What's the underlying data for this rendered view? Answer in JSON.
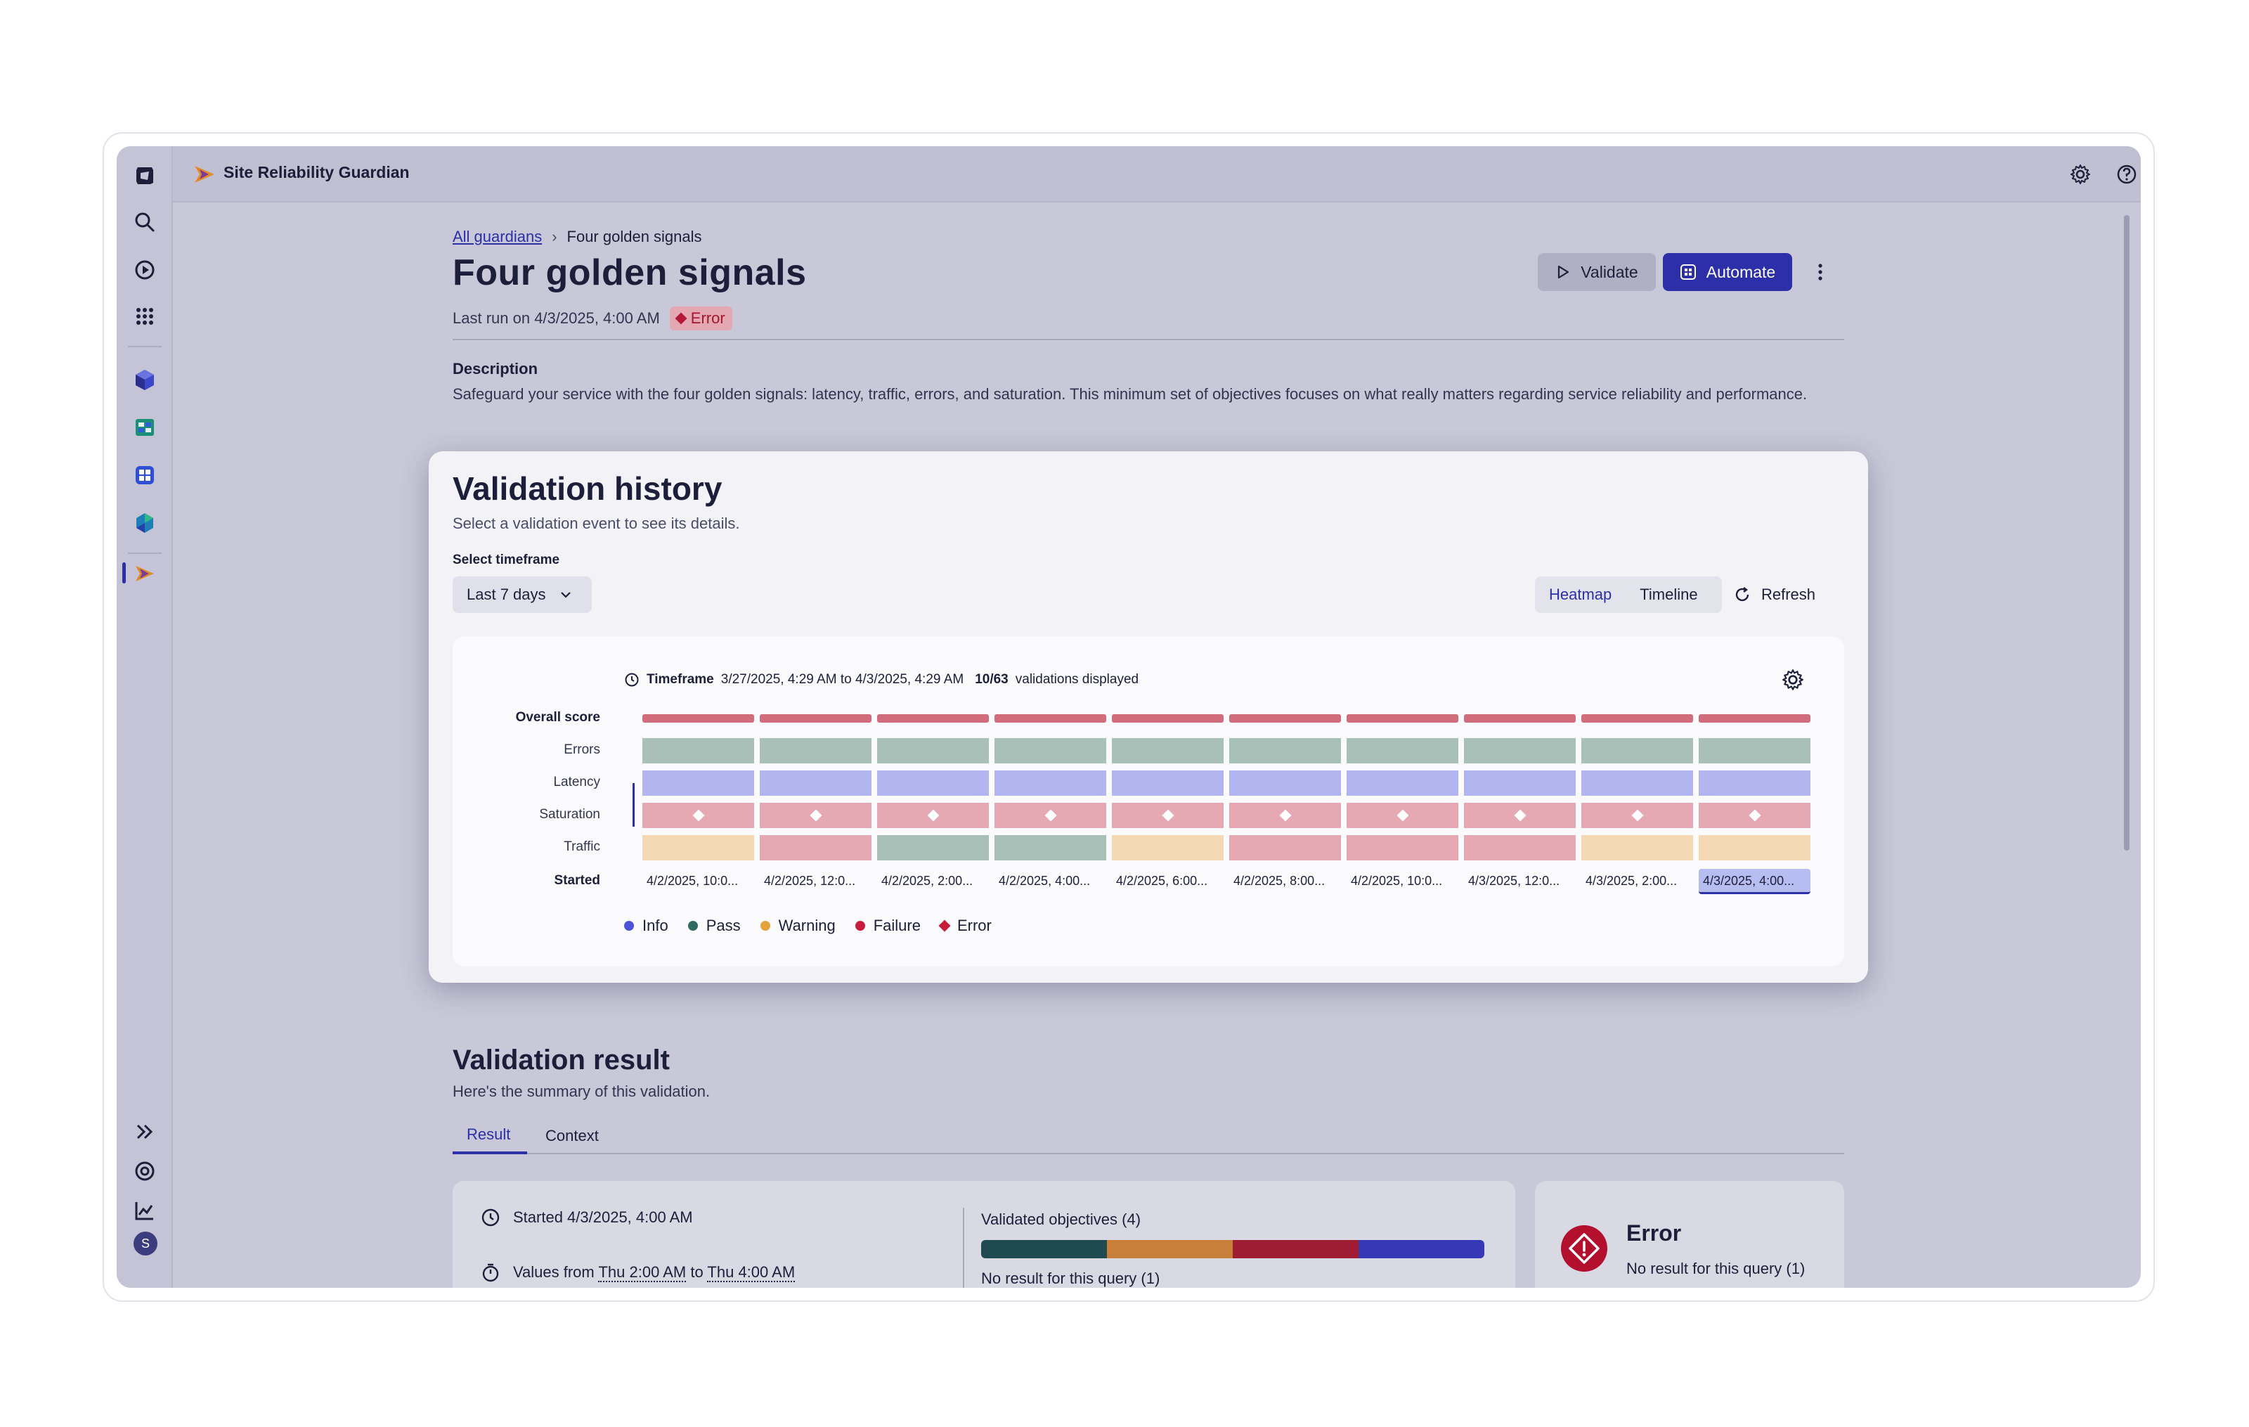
{
  "app": {
    "title": "Site Reliability Guardian"
  },
  "breadcrumb": {
    "root": "All guardians",
    "separator": "›",
    "current": "Four golden signals"
  },
  "header": {
    "title": "Four golden signals",
    "last_run": "Last run on 4/3/2025, 4:00 AM",
    "status": "Error",
    "validate_label": "Validate",
    "automate_label": "Automate"
  },
  "description": {
    "label": "Description",
    "text": "Safeguard your service with the four golden signals: latency, traffic, errors, and saturation. This minimum set of objectives focuses on what really matters regarding service reliability and performance."
  },
  "validation_history": {
    "title": "Validation history",
    "subtitle": "Select a validation event to see its details.",
    "timeframe_label": "Select timeframe",
    "timeframe_value": "Last 7 days",
    "view_heatmap": "Heatmap",
    "view_timeline": "Timeline",
    "refresh_label": "Refresh",
    "tf_label": "Timeframe",
    "tf_range": "3/27/2025, 4:29 AM to 4/3/2025, 4:29 AM",
    "tf_count": "10/63",
    "tf_count_suffix": "validations displayed",
    "heatmap": {
      "rows": [
        "Overall score",
        "Errors",
        "Latency",
        "Saturation",
        "Traffic"
      ],
      "started_label": "Started",
      "started": [
        "4/2/2025, 10:0...",
        "4/2/2025, 12:0...",
        "4/2/2025, 2:00...",
        "4/2/2025, 4:00...",
        "4/2/2025, 6:00...",
        "4/2/2025, 8:00...",
        "4/2/2025, 10:0...",
        "4/3/2025, 12:0...",
        "4/3/2025, 2:00...",
        "4/3/2025, 4:00..."
      ],
      "selected_index": 9,
      "cells": [
        [
          "error",
          "error",
          "error",
          "error",
          "error",
          "error",
          "error",
          "error",
          "error",
          "error"
        ],
        [
          "pass",
          "pass",
          "pass",
          "pass",
          "pass",
          "pass",
          "pass",
          "pass",
          "pass",
          "pass"
        ],
        [
          "info",
          "info",
          "info",
          "info",
          "info",
          "info",
          "info",
          "info",
          "info",
          "info"
        ],
        [
          "failure-marked",
          "failure-marked",
          "failure-marked",
          "failure-marked",
          "failure-marked",
          "failure-marked",
          "failure-marked",
          "failure-marked",
          "failure-marked",
          "failure-marked"
        ],
        [
          "warning",
          "failure",
          "pass",
          "pass",
          "warning",
          "failure",
          "failure",
          "failure",
          "warning",
          "warning"
        ]
      ]
    },
    "legend": [
      {
        "label": "Info",
        "color": "#4d53d6",
        "shape": "dot"
      },
      {
        "label": "Pass",
        "color": "#2e6b63",
        "shape": "dot"
      },
      {
        "label": "Warning",
        "color": "#e2a23c",
        "shape": "dot"
      },
      {
        "label": "Failure",
        "color": "#c81c3c",
        "shape": "dot"
      },
      {
        "label": "Error",
        "color": "#c81c3c",
        "shape": "diamond"
      }
    ],
    "colors": {
      "error": "#d16c7c",
      "pass": "#a8c0b8",
      "info": "#b3b5f0",
      "failure": "#e6a8b2",
      "failure-marked": "#e6a8b2",
      "warning": "#f5d9b4"
    }
  },
  "validation_result": {
    "title": "Validation result",
    "subtitle": "Here's the summary of this validation.",
    "tabs": [
      "Result",
      "Context"
    ],
    "started": "Started 4/3/2025, 4:00 AM",
    "values_prefix": "Values from",
    "values_from": "Thu 2:00 AM",
    "values_to_word": "to",
    "values_to": "Thu 4:00 AM",
    "objectives_label": "Validated objectives (4)",
    "objective_segments": [
      "#1f4a4f",
      "#c77f3a",
      "#a01c32",
      "#3539b5"
    ],
    "no_result": "No result for this query (1)",
    "error_title": "Error",
    "error_sub": "No result for this query (1)"
  },
  "user": {
    "initial": "S"
  }
}
